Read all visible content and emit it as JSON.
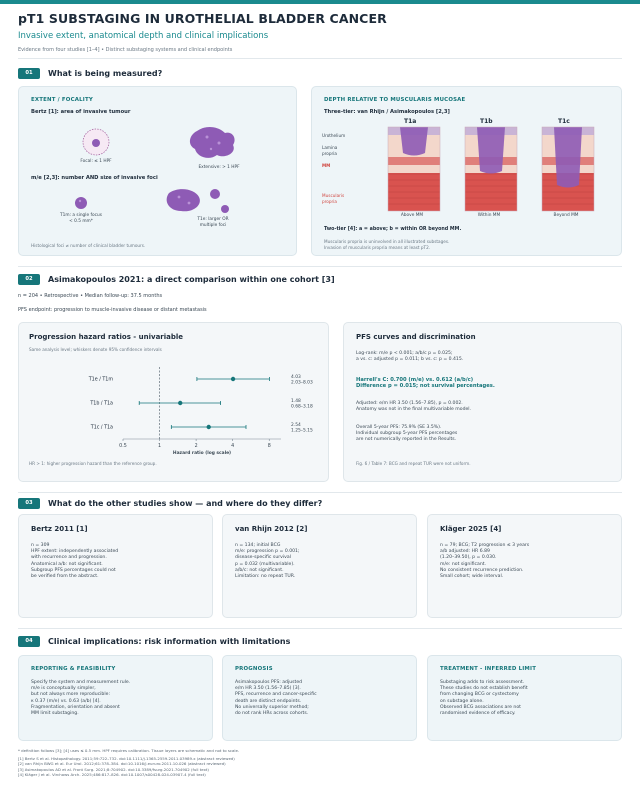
{
  "header": {
    "title": "pT1 SUBSTAGING IN UROTHELIAL BLADDER CANCER",
    "subtitle": "Invasive extent, anatomical depth and clinical implications",
    "meta": "Evidence from four studies [1–4] • Distinct substaging systems and clinical endpoints"
  },
  "s1": {
    "num": "01",
    "title": "What is being measured?",
    "extent": {
      "heading": "EXTENT / FOCALITY",
      "bertz": "Bertz [1]: area of invasive tumour",
      "focal_caption": "Focal: ≤ 1 HPF",
      "extensive_caption": "Extensive: > 1 HPF",
      "me_line": "m/e [2,3]: number AND size of invasive foci",
      "t1m_caption": "T1m: a single focus\n< 0.5 mm*",
      "t1e_caption": "T1e: larger OR\nmultiple foci",
      "note": "Histological foci ≠ number of clinical bladder tumours."
    },
    "depth": {
      "heading": "DEPTH RELATIVE TO MUSCULARIS MUCOSAE",
      "three_tier": "Three-tier: van Rhijn / Asimakopoulos [2,3]",
      "col_labels": [
        "T1a",
        "T1b",
        "T1c"
      ],
      "layer_labels": [
        "Urothelium",
        "Lamina\npropria",
        "MM",
        "Muscularis\npropria"
      ],
      "bottom_labels": [
        "Above MM",
        "Within MM",
        "Beyond MM"
      ],
      "two_tier": "Two-tier [4]: a = above; b = within OR beyond MM.",
      "note": "Muscularis propria is uninvolved in all illustrated substages.\nInvasion of muscularis propria means at least pT2.",
      "colors": {
        "urothelium": "#c9b4d6",
        "lamina": "#f3d7cb",
        "mm": "#e07f7a",
        "mp": "#d9534f",
        "tumour": "#8e5bb5"
      }
    }
  },
  "s2": {
    "num": "02",
    "title": "Asimakopoulos 2021: a direct comparison within one cohort [3]",
    "meta": "n = 204 • Retrospective • Median follow-up: 37.5 months",
    "endpoint": "PFS endpoint: progression to muscle-invasive disease or distant metastasis",
    "forest": {
      "heading": "Progression hazard ratios - univariable",
      "sub": "Same analysis level; whiskers denote 95% confidence intervals",
      "footnote": "HR > 1: higher progression hazard than the reference group.",
      "xlabel": "Hazard ratio (log scale)"
    },
    "pfs": {
      "heading": "PFS curves and discrimination",
      "logrank": "Log-rank: m/e p < 0.001; a/b/c p = 0.025;\na vs. c: adjusted p = 0.011; b vs. c: p = 0.415.",
      "harrell": "Harrell's C: 0.700 (m/e) vs. 0.612 (a/b/c)\nDifference p = 0.015; not survival percentages.",
      "adjusted": "Adjusted: e/m HR 3.50 (1.56–7.85), p = 0.002.\nAnatomy was not in the final multivariable model.",
      "overall": "Overall 5-year PFS: 75.9% (SE 3.5%).\nIndividual subgroup 5-year PFS percentages\nare not numerically reported in the Results.",
      "fig_note": "Fig. 6 / Table 7: BCG and repeat TUR were not uniform."
    }
  },
  "chart_data": {
    "type": "forest",
    "xlabel": "Hazard ratio (log scale)",
    "xscale": "log",
    "xlim": [
      0.5,
      10
    ],
    "xticks": [
      "0.5",
      "1",
      "2",
      "4",
      "8"
    ],
    "reference_line": 1,
    "rows": [
      {
        "label": "T1e / T1m",
        "hr": 4.03,
        "lo": 2.03,
        "hi": 8.03,
        "text": "4.03\n2.03–8.03"
      },
      {
        "label": "T1b / T1a",
        "hr": 1.48,
        "lo": 0.68,
        "hi": 3.18,
        "text": "1.48\n0.68–3.18"
      },
      {
        "label": "T1c / T1a",
        "hr": 2.54,
        "lo": 1.25,
        "hi": 5.15,
        "text": "2.54\n1.25–5.15"
      }
    ],
    "color": "#16767a"
  },
  "s3": {
    "num": "03",
    "title": "What do the other studies show — and where do they differ?",
    "cards": [
      {
        "title": "Bertz 2011 [1]",
        "body": "n = 309\nHPF extent: independently associated\nwith recurrence and progression.\nAnatomical a/b: not significant.\nSubgroup PFS percentages could not\nbe verified from the abstract."
      },
      {
        "title": "van Rhijn 2012 [2]",
        "body": "n = 134; initial BCG\nm/e: progression p = 0.001;\ndisease-specific survival\np = 0.032 (multivariable).\na/b/c: not significant.\nLimitation: no repeat TUR."
      },
      {
        "title": "Kläger 2025 [4]",
        "body": "n = 79; BCG; T2 progression ≤ 3 years\na/b adjusted: HR 6.89\n(1.20–39.50), p = 0.030.\nm/e: not significant.\nNo consistent recurrence prediction.\nSmall cohort; wide interval."
      }
    ]
  },
  "s4": {
    "num": "04",
    "title": "Clinical implications: risk information with limitations",
    "cards": [
      {
        "title": "REPORTING & FEASIBILITY",
        "body": "Specify the system and measurement rule.\nm/e is conceptually simpler,\nbut not always more reproducible:\nκ 0.37 (m/e) vs. 0.63 (a/b) [4].\nFragmentation, orientation and absent\nMM limit substaging."
      },
      {
        "title": "PROGNOSIS",
        "body": "Asimakopoulos PFS: adjusted\ne/m HR 3.50 (1.56–7.85) [3].\nPFS, recurrence and cancer-specific\ndeath are distinct endpoints.\nNo universally superior method;\ndo not rank HRs across cohorts."
      },
      {
        "title": "TREATMENT - INFERRED LIMIT",
        "body": "Substaging adds to risk assessment.\nThese studies do not establish benefit\nfrom changing BCG or cystectomy\non substage alone.\nObserved BCG associations are not\nrandomised evidence of efficacy."
      }
    ]
  },
  "footer": {
    "footnote": "* definition follows [3]; [4] uses ≤ 0.5 mm. HPF requires calibration. Tissue layers are schematic and not to scale.",
    "refs": [
      "[1] Bertz S et al. Histopathology. 2011;59:722–732. doi:10.1111/j.1365-2559.2011.03989.x (abstract reviewed)",
      "[2] van Rhijn BWG et al. Eur Urol. 2012;61:378–384. doi:10.1016/j.eururo.2011.10.026 (abstract reviewed)",
      "[3] Asimakopoulos AD et al. Front Surg. 2021;8:704902. doi:10.3389/fsurg.2021.704902 (full text)",
      "[4] Kläger J et al. Virchows Arch. 2025;486:817–826. doi:10.1007/s00428-024-03907-4 (full text)"
    ]
  }
}
